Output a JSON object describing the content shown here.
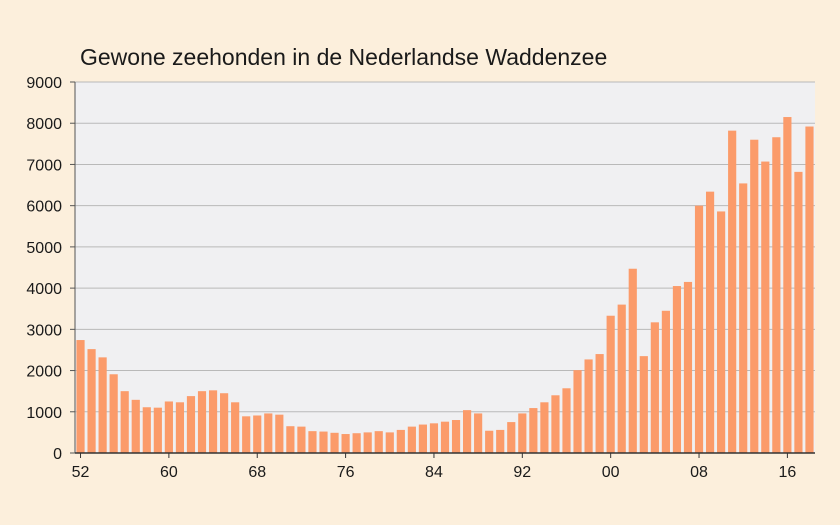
{
  "chart_data": {
    "type": "bar",
    "title": "Gewone zeehonden in de Nederlandse Waddenzee",
    "xlabel": "",
    "ylabel": "",
    "ylim": [
      0,
      9000
    ],
    "yticks": [
      0,
      1000,
      2000,
      3000,
      4000,
      5000,
      6000,
      7000,
      8000,
      9000
    ],
    "x_tick_labels": [
      "52",
      "60",
      "68",
      "76",
      "84",
      "92",
      "00",
      "08",
      "16"
    ],
    "x_tick_years": [
      1952,
      1960,
      1968,
      1976,
      1984,
      1992,
      2000,
      2008,
      2016
    ],
    "grid": true,
    "bar_color": "#fb9b6a",
    "plot_background": "#f0f0f2",
    "grid_color": "#b9b9b9",
    "years": [
      1952,
      1953,
      1954,
      1955,
      1956,
      1957,
      1958,
      1959,
      1960,
      1961,
      1962,
      1963,
      1964,
      1965,
      1966,
      1967,
      1968,
      1969,
      1970,
      1971,
      1972,
      1973,
      1974,
      1975,
      1976,
      1977,
      1978,
      1979,
      1980,
      1981,
      1982,
      1983,
      1984,
      1985,
      1986,
      1987,
      1988,
      1989,
      1990,
      1991,
      1992,
      1993,
      1994,
      1995,
      1996,
      1997,
      1998,
      1999,
      2000,
      2001,
      2002,
      2003,
      2004,
      2005,
      2006,
      2007,
      2008,
      2009,
      2010,
      2011,
      2012,
      2013,
      2014,
      2015,
      2016,
      2017,
      2018
    ],
    "values": [
      2740,
      2520,
      2320,
      1910,
      1500,
      1290,
      1110,
      1100,
      1250,
      1230,
      1380,
      1500,
      1520,
      1450,
      1230,
      890,
      910,
      960,
      930,
      650,
      640,
      530,
      520,
      490,
      460,
      480,
      500,
      530,
      500,
      560,
      640,
      690,
      720,
      760,
      800,
      1040,
      960,
      540,
      560,
      750,
      960,
      1090,
      1230,
      1400,
      1570,
      2010,
      2270,
      2400,
      3330,
      3600,
      4470,
      2350,
      3170,
      3450,
      4050,
      4150,
      6000,
      6340,
      5860,
      7820,
      6540,
      7600,
      7070,
      7660,
      8150,
      6820,
      7920
    ]
  }
}
